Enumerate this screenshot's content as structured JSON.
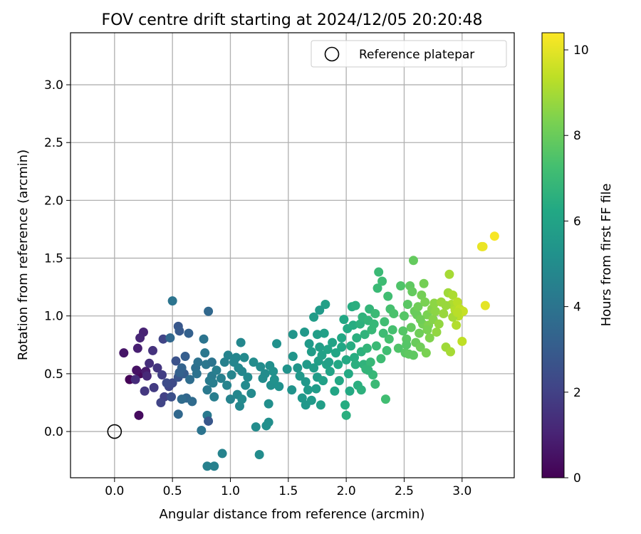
{
  "chart_data": {
    "type": "scatter",
    "title": "FOV centre drift starting at 2024/12/05 20:20:48",
    "xlabel": "Angular distance from reference (arcmin)",
    "ylabel": "Rotation from reference (arcmin)",
    "xlim": [
      -0.38,
      3.45
    ],
    "ylim": [
      -0.4,
      3.45
    ],
    "x_ticks": [
      "0.0",
      "0.5",
      "1.0",
      "1.5",
      "2.0",
      "2.5",
      "3.0"
    ],
    "y_ticks": [
      "0.0",
      "0.5",
      "1.0",
      "1.5",
      "2.0",
      "2.5",
      "3.0"
    ],
    "grid": true,
    "legend": {
      "position": "top-right",
      "label": "Reference platepar",
      "marker": "open-circle"
    },
    "reference_point": {
      "x": 0.0,
      "y": 0.0
    },
    "colorbar": {
      "label": "Hours from first FF file",
      "range": [
        0,
        10.4
      ],
      "ticks": [
        "0",
        "2",
        "4",
        "6",
        "8",
        "10"
      ],
      "colormap": "viridis"
    },
    "points": [
      [
        0.13,
        0.45,
        0.1
      ],
      [
        0.21,
        0.14,
        0.3
      ],
      [
        0.22,
        0.5,
        0.2
      ],
      [
        0.08,
        0.68,
        0.6
      ],
      [
        0.19,
        0.53,
        0.5
      ],
      [
        0.27,
        0.52,
        0.8
      ],
      [
        0.2,
        0.72,
        0.9
      ],
      [
        0.25,
        0.86,
        1.0
      ],
      [
        0.22,
        0.81,
        1.1
      ],
      [
        0.28,
        0.48,
        1.2
      ],
      [
        0.18,
        0.45,
        1.3
      ],
      [
        0.3,
        0.59,
        1.4
      ],
      [
        0.33,
        0.7,
        1.5
      ],
      [
        0.37,
        0.55,
        1.6
      ],
      [
        0.26,
        0.35,
        1.7
      ],
      [
        0.34,
        0.38,
        1.8
      ],
      [
        0.41,
        0.49,
        1.9
      ],
      [
        0.43,
        0.3,
        2.0
      ],
      [
        0.4,
        0.25,
        2.1
      ],
      [
        0.42,
        0.8,
        2.1
      ],
      [
        0.47,
        0.39,
        2.2
      ],
      [
        0.5,
        0.42,
        2.3
      ],
      [
        0.45,
        0.42,
        2.4
      ],
      [
        0.49,
        0.3,
        2.5
      ],
      [
        0.53,
        0.61,
        2.6
      ],
      [
        0.55,
        0.47,
        2.7
      ],
      [
        0.55,
        0.91,
        2.8
      ],
      [
        0.56,
        0.87,
        2.9
      ],
      [
        0.6,
        0.5,
        3.0
      ],
      [
        0.61,
        0.65,
        3.1
      ],
      [
        0.64,
        0.85,
        3.2
      ],
      [
        0.58,
        0.55,
        3.3
      ],
      [
        0.62,
        0.29,
        3.4
      ],
      [
        0.55,
        0.15,
        3.5
      ],
      [
        0.67,
        0.26,
        3.6
      ],
      [
        0.58,
        0.28,
        3.6
      ],
      [
        0.65,
        0.45,
        3.7
      ],
      [
        0.7,
        0.55,
        3.8
      ],
      [
        0.72,
        0.6,
        3.9
      ],
      [
        0.71,
        0.5,
        3.9
      ],
      [
        0.75,
        0.01,
        4.0
      ],
      [
        0.77,
        0.8,
        4.0
      ],
      [
        0.78,
        0.68,
        4.1
      ],
      [
        0.79,
        0.58,
        4.1
      ],
      [
        0.8,
        0.36,
        4.2
      ],
      [
        0.8,
        0.14,
        4.2
      ],
      [
        0.82,
        0.44,
        4.3
      ],
      [
        0.84,
        0.48,
        4.3
      ],
      [
        0.85,
        0.42,
        4.4
      ],
      [
        0.86,
        0.3,
        4.4
      ],
      [
        0.88,
        0.53,
        4.4
      ],
      [
        0.8,
        -0.3,
        4.5
      ],
      [
        0.86,
        -0.3,
        4.5
      ],
      [
        0.93,
        -0.19,
        4.6
      ],
      [
        0.5,
        1.13,
        4.0
      ],
      [
        0.81,
        1.04,
        3.5
      ],
      [
        0.81,
        0.09,
        2.8
      ],
      [
        0.48,
        0.81,
        3.5
      ],
      [
        0.56,
        0.51,
        3.2
      ],
      [
        0.84,
        0.6,
        4.0
      ],
      [
        0.92,
        0.46,
        4.5
      ],
      [
        0.95,
        0.6,
        4.5
      ],
      [
        0.97,
        0.4,
        4.6
      ],
      [
        0.98,
        0.66,
        4.6
      ],
      [
        1.0,
        0.28,
        4.6
      ],
      [
        1.01,
        0.49,
        4.7
      ],
      [
        1.03,
        0.6,
        4.7
      ],
      [
        1.05,
        0.64,
        4.7
      ],
      [
        1.07,
        0.55,
        4.8
      ],
      [
        1.09,
        0.77,
        4.8
      ],
      [
        1.06,
        0.32,
        4.8
      ],
      [
        1.08,
        0.22,
        4.8
      ],
      [
        1.1,
        0.52,
        4.8
      ],
      [
        1.12,
        0.64,
        4.9
      ],
      [
        1.13,
        0.4,
        4.9
      ],
      [
        1.1,
        0.28,
        4.9
      ],
      [
        1.15,
        0.47,
        4.9
      ],
      [
        1.18,
        0.33,
        4.9
      ],
      [
        1.2,
        0.6,
        5.0
      ],
      [
        1.22,
        0.04,
        5.0
      ],
      [
        1.25,
        -0.2,
        5.0
      ],
      [
        1.26,
        0.56,
        5.0
      ],
      [
        1.28,
        0.46,
        5.0
      ],
      [
        1.3,
        0.5,
        5.0
      ],
      [
        1.31,
        0.05,
        5.1
      ],
      [
        1.33,
        0.24,
        5.1
      ],
      [
        1.33,
        0.08,
        5.1
      ],
      [
        1.34,
        0.57,
        5.1
      ],
      [
        1.35,
        0.4,
        5.1
      ],
      [
        1.37,
        0.52,
        5.2
      ],
      [
        1.38,
        0.45,
        5.2
      ],
      [
        1.4,
        0.76,
        5.2
      ],
      [
        1.42,
        0.39,
        5.2
      ],
      [
        1.49,
        0.54,
        5.3
      ],
      [
        1.53,
        0.36,
        5.3
      ],
      [
        1.54,
        0.65,
        5.4
      ],
      [
        1.54,
        0.84,
        5.4
      ],
      [
        1.58,
        0.55,
        5.4
      ],
      [
        1.6,
        0.48,
        5.5
      ],
      [
        1.62,
        0.29,
        5.5
      ],
      [
        1.65,
        0.43,
        5.5
      ],
      [
        1.66,
        0.58,
        5.6
      ],
      [
        1.67,
        0.36,
        5.6
      ],
      [
        1.68,
        0.76,
        5.6
      ],
      [
        1.7,
        0.27,
        5.6
      ],
      [
        1.72,
        0.55,
        5.7
      ],
      [
        1.72,
        0.99,
        5.7
      ],
      [
        1.74,
        0.37,
        5.7
      ],
      [
        1.75,
        0.47,
        5.7
      ],
      [
        1.76,
        0.61,
        5.8
      ],
      [
        1.77,
        0.73,
        5.8
      ],
      [
        1.78,
        0.23,
        5.8
      ],
      [
        1.79,
        0.66,
        5.9
      ],
      [
        1.8,
        0.44,
        5.9
      ],
      [
        1.81,
        0.85,
        5.9
      ],
      [
        1.82,
        1.1,
        5.9
      ],
      [
        1.83,
        0.58,
        6.0
      ],
      [
        1.84,
        0.71,
        6.0
      ],
      [
        1.86,
        0.52,
        6.0
      ],
      [
        1.88,
        0.77,
        6.0
      ],
      [
        1.9,
        0.35,
        6.1
      ],
      [
        1.91,
        0.68,
        6.1
      ],
      [
        1.93,
        0.58,
        6.2
      ],
      [
        1.94,
        0.44,
        6.2
      ],
      [
        1.96,
        0.81,
        6.2
      ],
      [
        1.98,
        0.97,
        6.2
      ],
      [
        1.65,
        0.23,
        5.5
      ],
      [
        1.7,
        0.69,
        5.7
      ],
      [
        1.75,
        0.84,
        5.8
      ],
      [
        1.77,
        1.05,
        5.6
      ],
      [
        1.64,
        0.86,
        5.5
      ],
      [
        1.85,
        0.6,
        5.9
      ],
      [
        2.0,
        0.62,
        6.3
      ],
      [
        2.01,
        0.89,
        6.3
      ],
      [
        2.02,
        0.5,
        6.3
      ],
      [
        2.03,
        0.35,
        6.3
      ],
      [
        2.04,
        0.74,
        6.4
      ],
      [
        2.05,
        1.08,
        6.4
      ],
      [
        2.06,
        0.92,
        6.4
      ],
      [
        2.07,
        0.64,
        6.4
      ],
      [
        2.08,
        1.09,
        6.5
      ],
      [
        2.09,
        0.81,
        6.5
      ],
      [
        2.1,
        0.4,
        6.5
      ],
      [
        2.12,
        0.93,
        6.6
      ],
      [
        2.13,
        0.69,
        6.6
      ],
      [
        2.14,
        0.99,
        6.7
      ],
      [
        2.15,
        0.58,
        6.7
      ],
      [
        2.16,
        0.84,
        6.7
      ],
      [
        2.17,
        0.54,
        6.8
      ],
      [
        2.18,
        0.72,
        6.8
      ],
      [
        2.19,
        0.96,
        6.8
      ],
      [
        2.2,
        1.06,
        6.8
      ],
      [
        2.21,
        0.6,
        6.9
      ],
      [
        2.22,
        0.88,
        6.9
      ],
      [
        2.23,
        0.49,
        6.9
      ],
      [
        2.24,
        0.93,
        6.9
      ],
      [
        2.25,
        1.02,
        7.0
      ],
      [
        2.26,
        0.74,
        7.0
      ],
      [
        2.27,
        1.24,
        7.0
      ],
      [
        2.28,
        1.38,
        7.0
      ],
      [
        2.3,
        0.63,
        7.1
      ],
      [
        2.31,
        1.3,
        7.1
      ],
      [
        2.32,
        0.85,
        7.1
      ],
      [
        2.33,
        0.95,
        7.2
      ],
      [
        2.34,
        0.28,
        7.2
      ],
      [
        2.35,
        0.7,
        7.2
      ],
      [
        2.36,
        1.17,
        7.2
      ],
      [
        2.37,
        0.8,
        7.3
      ],
      [
        2.38,
        1.06,
        7.3
      ],
      [
        2.4,
        0.88,
        7.3
      ],
      [
        2.41,
        1.02,
        7.4
      ],
      [
        1.99,
        0.23,
        6.4
      ],
      [
        2.0,
        0.14,
        6.5
      ],
      [
        1.96,
        0.73,
        6.2
      ],
      [
        2.08,
        0.58,
        6.5
      ],
      [
        2.13,
        0.36,
        6.6
      ],
      [
        2.19,
        0.53,
        6.8
      ],
      [
        2.25,
        0.41,
        7.0
      ],
      [
        2.45,
        0.72,
        7.5
      ],
      [
        2.47,
        1.26,
        7.5
      ],
      [
        2.49,
        0.87,
        7.6
      ],
      [
        2.5,
        1.0,
        7.6
      ],
      [
        2.51,
        0.68,
        7.7
      ],
      [
        2.52,
        0.8,
        7.7
      ],
      [
        2.53,
        1.1,
        7.7
      ],
      [
        2.54,
        0.67,
        7.8
      ],
      [
        2.55,
        1.26,
        7.8
      ],
      [
        2.56,
        0.9,
        7.9
      ],
      [
        2.57,
        1.21,
        7.9
      ],
      [
        2.58,
        1.48,
        7.9
      ],
      [
        2.59,
        1.04,
        8.0
      ],
      [
        2.6,
        0.77,
        8.0
      ],
      [
        2.61,
        1.01,
        8.0
      ],
      [
        2.62,
        1.08,
        8.1
      ],
      [
        2.63,
        0.85,
        8.1
      ],
      [
        2.64,
        0.73,
        8.1
      ],
      [
        2.65,
        1.18,
        8.2
      ],
      [
        2.66,
        0.93,
        8.2
      ],
      [
        2.67,
        1.28,
        8.2
      ],
      [
        2.68,
        1.12,
        8.3
      ],
      [
        2.69,
        0.68,
        8.3
      ],
      [
        2.7,
        1.01,
        8.3
      ],
      [
        2.71,
        0.92,
        8.4
      ],
      [
        2.72,
        0.81,
        8.4
      ],
      [
        2.74,
        1.06,
        8.5
      ],
      [
        2.75,
        0.97,
        8.5
      ],
      [
        2.76,
        1.11,
        8.6
      ],
      [
        2.77,
        1.04,
        8.6
      ],
      [
        2.78,
        0.86,
        8.7
      ],
      [
        2.8,
        0.93,
        8.7
      ],
      [
        2.82,
        1.12,
        8.8
      ],
      [
        2.84,
        1.02,
        8.8
      ],
      [
        2.86,
        0.73,
        8.9
      ],
      [
        2.88,
        1.2,
        8.9
      ],
      [
        2.89,
        1.36,
        9.0
      ],
      [
        2.9,
        0.69,
        9.0
      ],
      [
        2.91,
        1.1,
        9.1
      ],
      [
        2.92,
        1.18,
        9.1
      ],
      [
        2.94,
        1.05,
        9.2
      ],
      [
        2.95,
        0.92,
        9.2
      ],
      [
        2.96,
        1.12,
        9.3
      ],
      [
        2.97,
        1.0,
        9.3
      ],
      [
        2.98,
        1.06,
        9.4
      ],
      [
        3.0,
        0.78,
        9.4
      ],
      [
        3.01,
        1.04,
        9.5
      ],
      [
        2.52,
        0.75,
        7.6
      ],
      [
        2.58,
        0.66,
        7.8
      ],
      [
        2.64,
        0.97,
        8.1
      ],
      [
        2.7,
        0.88,
        8.3
      ],
      [
        2.86,
        1.09,
        8.8
      ],
      [
        2.92,
        0.99,
        9.0
      ],
      [
        2.96,
        1.03,
        9.3
      ],
      [
        3.17,
        1.6,
        10.0
      ],
      [
        3.18,
        1.6,
        10.1
      ],
      [
        3.2,
        1.09,
        10.0
      ],
      [
        3.28,
        1.69,
        10.3
      ]
    ]
  }
}
